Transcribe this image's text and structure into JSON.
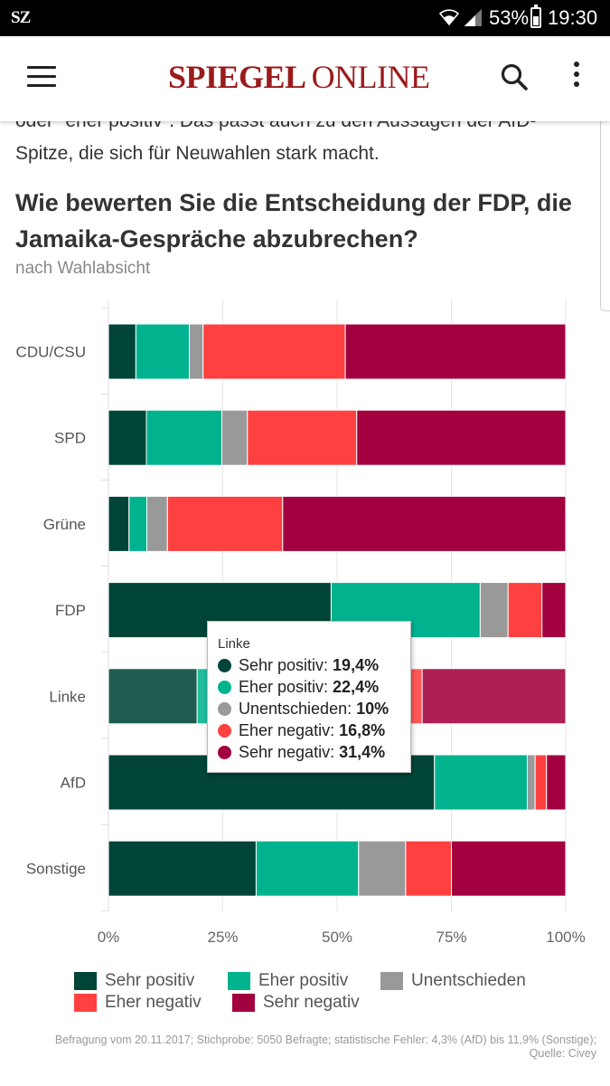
{
  "statusbar": {
    "app_icon_text": "SZ",
    "battery": "53%",
    "battery_level": 0.53,
    "time": "19:30"
  },
  "header": {
    "logo_part1": "SPIEGEL",
    "logo_part2": "ONLINE",
    "menu_icon": "hamburger-menu-icon",
    "search_icon": "search-icon",
    "more_icon": "more-vertical-icon"
  },
  "article": {
    "text": "oder \"eher positiv\". Das passt auch zu den Aussagen der AfD-Spitze, die sich für Neuwahlen stark macht."
  },
  "chart_data": {
    "type": "bar",
    "orientation": "horizontal",
    "stacked": true,
    "title": "Wie bewerten Sie die Entscheidung der FDP, die Jamaika-Gespräche abzubrechen?",
    "subtitle": "nach Wahlabsicht",
    "categories": [
      "CDU/CSU",
      "SPD",
      "Grüne",
      "FDP",
      "Linke",
      "AfD",
      "Sonstige"
    ],
    "series": [
      {
        "name": "Sehr positiv",
        "color": "#004537",
        "values": [
          6,
          8.3,
          4.5,
          48.7,
          19.4,
          71.3,
          32.3
        ]
      },
      {
        "name": "Eher positiv",
        "color": "#00b38f",
        "values": [
          11.7,
          16.5,
          3.9,
          32.6,
          22.4,
          20.3,
          22.4
        ]
      },
      {
        "name": "Unentschieden",
        "color": "#999999",
        "values": [
          3,
          5.6,
          4.5,
          6.1,
          10,
          1.7,
          10.3
        ]
      },
      {
        "name": "Eher negativ",
        "color": "#ff4040",
        "values": [
          31.1,
          23.9,
          25.2,
          7.4,
          16.8,
          2.5,
          10
        ]
      },
      {
        "name": "Sehr negativ",
        "color": "#a3003f",
        "values": [
          48.2,
          45.7,
          61.9,
          5.2,
          31.4,
          4.2,
          25
        ]
      }
    ],
    "xlim": [
      0,
      100
    ],
    "xticks": [
      "0%",
      "25%",
      "50%",
      "75%",
      "100%"
    ],
    "xtick_values": [
      0,
      25,
      50,
      75,
      100
    ],
    "grid": true,
    "highlighted_category": "Linke",
    "legend_position": "bottom"
  },
  "tooltip": {
    "title": "Linke",
    "rows": [
      {
        "label": "Sehr positiv:",
        "value": "19,4%",
        "color": "#004537"
      },
      {
        "label": "Eher positiv:",
        "value": "22,4%",
        "color": "#00b38f"
      },
      {
        "label": "Unentschieden:",
        "value": "10%",
        "color": "#999999"
      },
      {
        "label": "Eher negativ:",
        "value": "16,8%",
        "color": "#ff4040"
      },
      {
        "label": "Sehr negativ:",
        "value": "31,4%",
        "color": "#a3003f"
      }
    ]
  },
  "legend": [
    {
      "label": "Sehr positiv",
      "color": "#004537"
    },
    {
      "label": "Eher positiv",
      "color": "#00b38f"
    },
    {
      "label": "Unentschieden",
      "color": "#999999"
    },
    {
      "label": "Eher negativ",
      "color": "#ff4040"
    },
    {
      "label": "Sehr negativ",
      "color": "#a3003f"
    }
  ],
  "footnote": "Befragung vom 20.11.2017; Stichprobe: 5050 Befragte; statistische Fehler: 4,3% (AfD) bis 11,9% (Sonstige); Quelle: Civey"
}
